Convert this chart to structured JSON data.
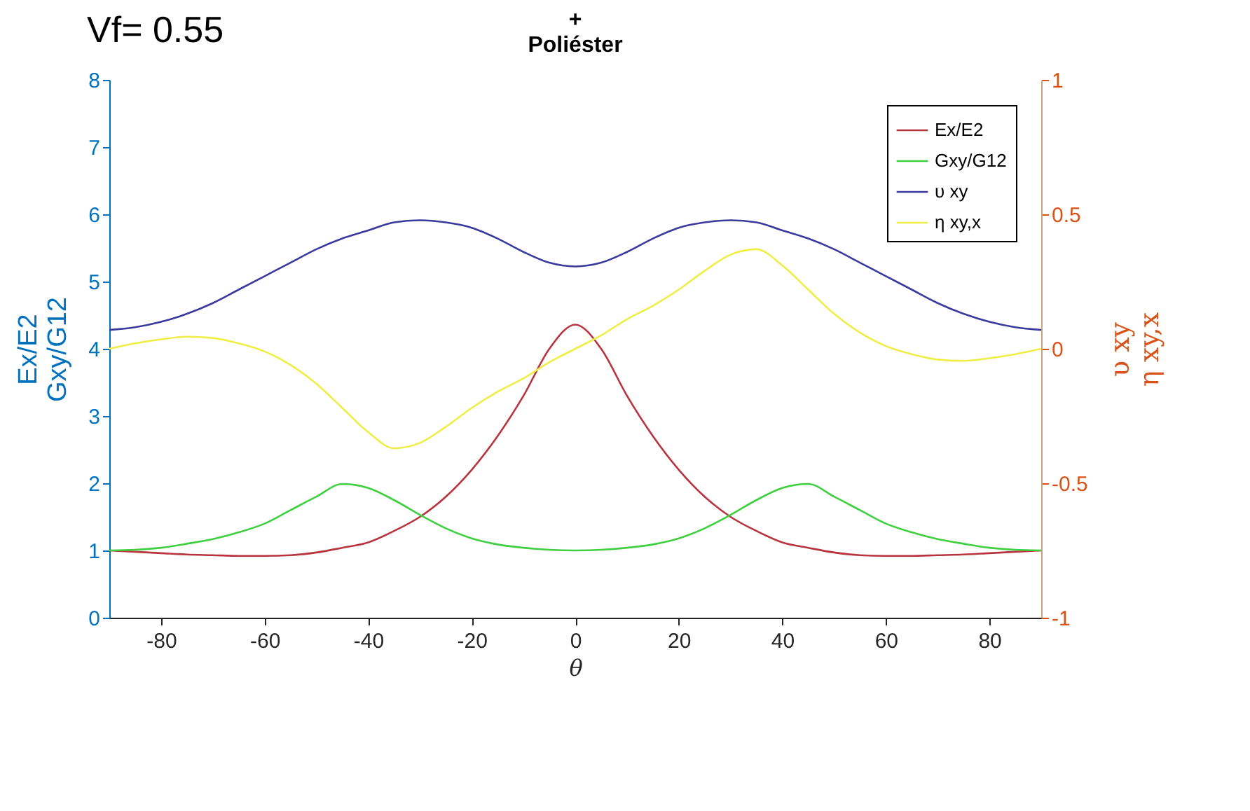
{
  "chart_data": {
    "type": "line",
    "title": "+",
    "subtitle": "Poliéster",
    "xlabel": "θ",
    "ylabel": "Ex/E2\nGxy/G12",
    "y2label": "υ xy\nη xy,x",
    "annotations": [
      "Vf= 0.55"
    ],
    "x": [
      -90,
      -85,
      -80,
      -75,
      -70,
      -65,
      -60,
      -55,
      -50,
      -45,
      -40,
      -35,
      -30,
      -25,
      -20,
      -15,
      -10,
      -5,
      0,
      5,
      10,
      15,
      20,
      25,
      30,
      35,
      40,
      45,
      50,
      55,
      60,
      65,
      70,
      75,
      80,
      85,
      90
    ],
    "xlim": [
      -90,
      90
    ],
    "xticks": [
      -80,
      -60,
      -40,
      -20,
      0,
      20,
      40,
      60,
      80
    ],
    "ylim": [
      0,
      8
    ],
    "yticks": [
      0,
      1,
      2,
      3,
      4,
      5,
      6,
      7,
      8
    ],
    "y2lim": [
      -1,
      1
    ],
    "y2ticks": [
      -1,
      -0.5,
      0,
      0.5,
      1
    ],
    "grid": false,
    "legend": "top right",
    "marker": "none",
    "line_style": "solid",
    "series": [
      {
        "name": "Ex/E2",
        "color": "#b8343f",
        "values": [
          1.0,
          0.98,
          0.96,
          0.94,
          0.93,
          0.92,
          0.92,
          0.93,
          0.97,
          1.04,
          1.12,
          1.29,
          1.5,
          1.8,
          2.2,
          2.7,
          3.3,
          4.0,
          4.36,
          4.0,
          3.3,
          2.7,
          2.2,
          1.8,
          1.5,
          1.29,
          1.12,
          1.04,
          0.97,
          0.93,
          0.92,
          0.92,
          0.93,
          0.94,
          0.96,
          0.98,
          1.0
        ]
      },
      {
        "name": "Gxy/G12",
        "color": "#3fd03f",
        "values": [
          1.0,
          1.01,
          1.04,
          1.1,
          1.17,
          1.27,
          1.4,
          1.6,
          1.8,
          1.99,
          1.93,
          1.75,
          1.53,
          1.33,
          1.18,
          1.09,
          1.04,
          1.01,
          1.0,
          1.01,
          1.04,
          1.09,
          1.18,
          1.33,
          1.53,
          1.75,
          1.93,
          1.99,
          1.8,
          1.6,
          1.4,
          1.27,
          1.17,
          1.1,
          1.04,
          1.01,
          1.0
        ]
      },
      {
        "name": "υ xy",
        "color": "#3a3a9e",
        "axis": "y2",
        "values": [
          0.07,
          0.08,
          0.1,
          0.13,
          0.17,
          0.22,
          0.27,
          0.32,
          0.37,
          0.41,
          0.44,
          0.47,
          0.478,
          0.47,
          0.45,
          0.41,
          0.36,
          0.32,
          0.306,
          0.32,
          0.36,
          0.41,
          0.45,
          0.47,
          0.478,
          0.47,
          0.44,
          0.41,
          0.37,
          0.32,
          0.27,
          0.22,
          0.17,
          0.13,
          0.1,
          0.08,
          0.07
        ]
      },
      {
        "name": "η xy,x",
        "color": "#eeee44",
        "axis": "y2",
        "values": [
          0,
          0.02,
          0.035,
          0.045,
          0.04,
          0.02,
          -0.01,
          -0.06,
          -0.13,
          -0.22,
          -0.31,
          -0.37,
          -0.35,
          -0.29,
          -0.22,
          -0.16,
          -0.11,
          -0.05,
          0,
          0.05,
          0.11,
          0.16,
          0.22,
          0.29,
          0.35,
          0.37,
          0.31,
          0.22,
          0.13,
          0.06,
          0.01,
          -0.02,
          -0.04,
          -0.045,
          -0.035,
          -0.02,
          0
        ]
      }
    ]
  }
}
